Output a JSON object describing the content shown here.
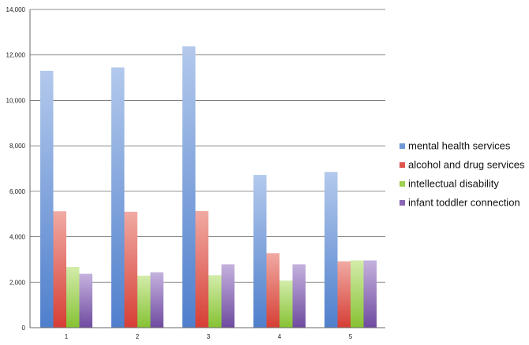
{
  "chart_data": {
    "type": "bar",
    "categories": [
      "1",
      "2",
      "3",
      "4",
      "5"
    ],
    "series": [
      {
        "name": "mental health services",
        "values": [
          11300,
          11450,
          12380,
          6720,
          6850
        ],
        "color": "#6f98d6"
      },
      {
        "name": "alcohol and drug services",
        "values": [
          5120,
          5100,
          5130,
          3280,
          2920
        ],
        "color": "#e0564d"
      },
      {
        "name": "intellectual disability",
        "values": [
          2670,
          2290,
          2310,
          2070,
          2960
        ],
        "color": "#9fd14f"
      },
      {
        "name": "infant toddler connection",
        "values": [
          2370,
          2440,
          2790,
          2790,
          2960
        ],
        "color": "#8a65b3"
      }
    ],
    "ylim": [
      0,
      14000
    ],
    "yticks": [
      "0",
      "2,000",
      "4,000",
      "6,000",
      "8,000",
      "10,000",
      "12,000",
      "14,000"
    ],
    "grid": true,
    "legend_position": "right"
  }
}
